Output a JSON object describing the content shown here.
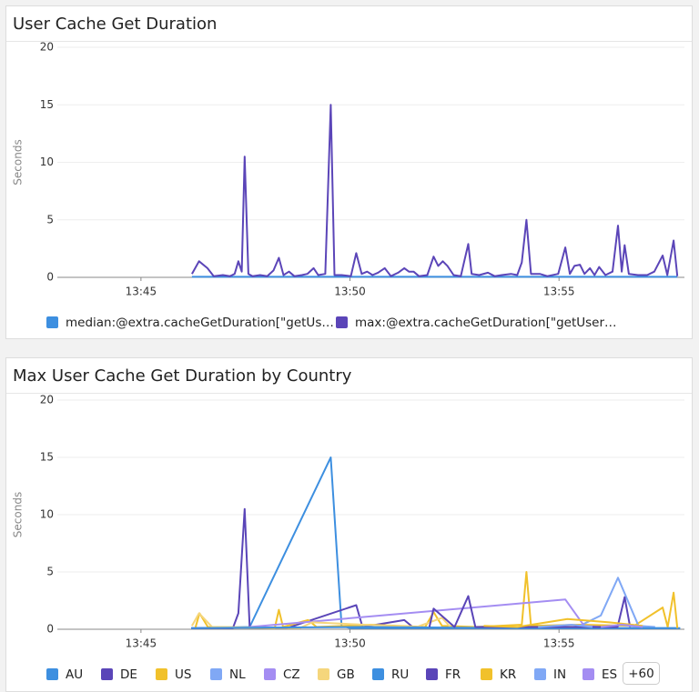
{
  "chart_data": [
    {
      "type": "line",
      "title": "User Cache Get Duration",
      "y_label": "Seconds",
      "xlim": [
        823,
        838
      ],
      "xticks": [
        {
          "value": 825,
          "label": "13:45"
        },
        {
          "value": 830,
          "label": "13:50"
        },
        {
          "value": 835,
          "label": "13:55"
        }
      ],
      "ylim": [
        0,
        20
      ],
      "yticks": [
        0,
        5,
        10,
        15,
        20
      ],
      "grid": true,
      "x": [
        826.22,
        826.39,
        826.59,
        826.74,
        826.96,
        827.13,
        827.24,
        827.33,
        827.41,
        827.48,
        827.57,
        827.67,
        827.85,
        828.02,
        828.17,
        828.3,
        828.41,
        828.54,
        828.67,
        828.85,
        828.98,
        829.13,
        829.24,
        829.41,
        829.54,
        829.63,
        829.8,
        830.02,
        830.15,
        830.28,
        830.41,
        830.54,
        830.67,
        830.83,
        830.98,
        831.15,
        831.3,
        831.41,
        831.52,
        831.65,
        831.85,
        832.0,
        832.11,
        832.22,
        832.33,
        832.48,
        832.65,
        832.83,
        832.91,
        833.09,
        833.3,
        833.46,
        833.63,
        833.85,
        834.0,
        834.11,
        834.22,
        834.33,
        834.54,
        834.72,
        834.98,
        835.15,
        835.26,
        835.37,
        835.5,
        835.61,
        835.74,
        835.85,
        835.96,
        836.11,
        836.28,
        836.41,
        836.5,
        836.57,
        836.67,
        836.89,
        837.11,
        837.28,
        837.48,
        837.59,
        837.74,
        837.83
      ],
      "series": [
        {
          "name": "median:@extra.cacheGetDuration[\"getUs…",
          "color": "#3d8fe0",
          "values": [
            0.05,
            0.05,
            0.05,
            0.05,
            0.05,
            0.05,
            0.05,
            0.05,
            0.05,
            0.05,
            0.05,
            0.05,
            0.05,
            0.05,
            0.05,
            0.05,
            0.05,
            0.05,
            0.05,
            0.05,
            0.05,
            0.05,
            0.05,
            0.05,
            0.05,
            0.05,
            0.05,
            0.05,
            0.05,
            0.05,
            0.05,
            0.05,
            0.05,
            0.05,
            0.05,
            0.05,
            0.05,
            0.05,
            0.05,
            0.05,
            0.05,
            0.05,
            0.05,
            0.05,
            0.05,
            0.05,
            0.05,
            0.05,
            0.05,
            0.05,
            0.05,
            0.05,
            0.05,
            0.05,
            0.05,
            0.05,
            0.05,
            0.05,
            0.05,
            0.05,
            0.05,
            0.05,
            0.05,
            0.05,
            0.05,
            0.05,
            0.05,
            0.05,
            0.05,
            0.05,
            0.05,
            0.05,
            0.05,
            0.05,
            0.05,
            0.05,
            0.05,
            0.05,
            0.05,
            0.05,
            0.05,
            0.05
          ]
        },
        {
          "name": "max:@extra.cacheGetDuration[\"getUser…",
          "color": "#5b45b8",
          "values": [
            0.3,
            1.4,
            0.8,
            0.1,
            0.2,
            0.1,
            0.3,
            1.4,
            0.5,
            10.5,
            0.3,
            0.1,
            0.2,
            0.1,
            0.6,
            1.7,
            0.2,
            0.5,
            0.1,
            0.2,
            0.3,
            0.8,
            0.2,
            0.3,
            15.0,
            0.2,
            0.2,
            0.1,
            2.1,
            0.3,
            0.5,
            0.2,
            0.4,
            0.8,
            0.1,
            0.4,
            0.8,
            0.5,
            0.5,
            0.1,
            0.2,
            1.8,
            1.0,
            1.4,
            1.0,
            0.2,
            0.1,
            2.9,
            0.3,
            0.2,
            0.4,
            0.1,
            0.2,
            0.3,
            0.2,
            1.3,
            5.0,
            0.3,
            0.3,
            0.1,
            0.3,
            2.6,
            0.3,
            1.0,
            1.1,
            0.3,
            0.8,
            0.2,
            0.9,
            0.2,
            0.5,
            4.5,
            0.5,
            2.8,
            0.3,
            0.2,
            0.2,
            0.5,
            1.9,
            0.2,
            3.2,
            0.1
          ]
        }
      ]
    },
    {
      "type": "line",
      "title": "Max User Cache Get Duration by Country",
      "y_label": "Seconds",
      "xlim": [
        823,
        838
      ],
      "xticks": [
        {
          "value": 825,
          "label": "13:45"
        },
        {
          "value": 830,
          "label": "13:50"
        },
        {
          "value": 835,
          "label": "13:55"
        }
      ],
      "ylim": [
        0,
        20
      ],
      "yticks": [
        0,
        5,
        10,
        15,
        20
      ],
      "grid": true,
      "legend_more": "+60",
      "series": [
        {
          "name": "AU",
          "color": "#3d8fe0",
          "x": [
            826.3,
            827.6,
            829.54,
            829.8,
            830.0,
            833,
            837.9
          ],
          "values": [
            0.1,
            0.2,
            15,
            0.3,
            0.1,
            0.1,
            0.1
          ]
        },
        {
          "name": "DE",
          "color": "#5a45b8",
          "x": [
            826.2,
            827.2,
            827.33,
            827.48,
            827.6,
            828.5,
            830.15,
            830.3,
            831.3,
            831.5
          ],
          "values": [
            0.1,
            0.1,
            1.4,
            10.5,
            0.2,
            0.1,
            2.1,
            0.2,
            0.8,
            0.2
          ]
        },
        {
          "name": "US",
          "color": "#f1c12b",
          "x": [
            826.3,
            826.4,
            826.6,
            828.2,
            828.3,
            828.4,
            829.0,
            829.2,
            830.5,
            831.8,
            832.0,
            832.2,
            833.0,
            834.11,
            834.22,
            834.33,
            835.5,
            836.8,
            837.48,
            837.6,
            837.74,
            837.83
          ],
          "values": [
            0.1,
            1.4,
            0.2,
            0.1,
            1.7,
            0.2,
            0.8,
            0.2,
            0.4,
            0.2,
            1.5,
            0.3,
            0.2,
            0.4,
            5.0,
            0.3,
            0.4,
            0.3,
            1.9,
            0.2,
            3.2,
            0.1
          ]
        },
        {
          "name": "NL",
          "color": "#80a8f5",
          "x": [
            835.5,
            836.0,
            836.41,
            836.9,
            837.3
          ],
          "values": [
            0.3,
            1.2,
            4.5,
            0.3,
            0.2
          ]
        },
        {
          "name": "CZ",
          "color": "#a48df2",
          "x": [
            827.6,
            835.15,
            835.6,
            836.0
          ],
          "values": [
            0.2,
            2.6,
            0.3,
            0.2
          ]
        },
        {
          "name": "GB",
          "color": "#f5d67c",
          "x": [
            826.22,
            826.39,
            826.7,
            828.8,
            829.1,
            831.6,
            832.2,
            832.4
          ],
          "values": [
            0.3,
            1.4,
            0.2,
            0.1,
            0.6,
            0.2,
            1.0,
            0.2
          ]
        },
        {
          "name": "RU",
          "color": "#3d8fe0",
          "x": [
            826.2,
            830.2,
            834,
            837.8
          ],
          "values": [
            0.1,
            0.2,
            0.1,
            0.1
          ]
        },
        {
          "name": "FR",
          "color": "#5a45b8",
          "x": [
            831.9,
            832.0,
            832.5,
            832.83,
            833.0,
            836.4,
            836.57,
            836.7
          ],
          "values": [
            0.2,
            1.8,
            0.2,
            2.9,
            0.2,
            0.2,
            2.8,
            0.2
          ]
        },
        {
          "name": "KR",
          "color": "#f1c12b",
          "x": [
            833.2,
            834.0,
            835.2,
            836.2,
            837
          ],
          "values": [
            0.3,
            0.2,
            0.9,
            0.6,
            0.3
          ]
        },
        {
          "name": "IN",
          "color": "#80a8f5",
          "x": [
            834.5,
            835.3,
            835.8
          ],
          "values": [
            0.2,
            0.4,
            0.2
          ]
        },
        {
          "name": "ES",
          "color": "#a48df2",
          "x": [
            836.0,
            836.5,
            837.0
          ],
          "values": [
            0.2,
            0.4,
            0.2
          ]
        }
      ]
    }
  ]
}
